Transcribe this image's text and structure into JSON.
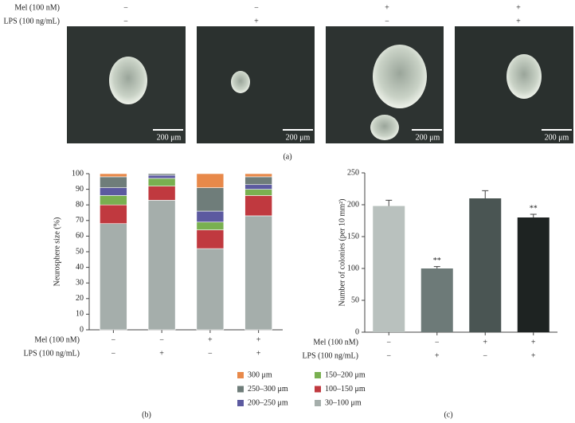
{
  "panel_a": {
    "rows": [
      {
        "label": "Mel (100 nM)",
        "values": [
          "−",
          "−",
          "+",
          "+"
        ]
      },
      {
        "label": "LPS (100 ng/mL)",
        "values": [
          "−",
          "+",
          "−",
          "+"
        ]
      }
    ],
    "scale_labels": [
      "200 μm",
      "200 μm",
      "200 μm",
      "200 μm"
    ],
    "caption": "(a)"
  },
  "chart_data": [
    {
      "type": "bar",
      "stacked": true,
      "caption": "(b)",
      "y_label": "Neurosphere size (%)",
      "categories": [
        null,
        null,
        null,
        null
      ],
      "x_rows": [
        {
          "label": "Mel (100 nM)",
          "values": [
            "−",
            "−",
            "+",
            "+"
          ]
        },
        {
          "label": "LPS (100 ng/mL)",
          "values": [
            "−",
            "+",
            "−",
            "+"
          ]
        }
      ],
      "series": [
        {
          "name": "30–100 μm",
          "color": "#a5aeab",
          "values": [
            68,
            83,
            52,
            73
          ]
        },
        {
          "name": "100–150 μm",
          "color": "#c0393f",
          "values": [
            12,
            9,
            12,
            13
          ]
        },
        {
          "name": "150–200 μm",
          "color": "#79b050",
          "values": [
            6,
            5,
            5,
            4
          ]
        },
        {
          "name": "200–250 μm",
          "color": "#5c5aa0",
          "values": [
            5,
            2,
            7,
            3
          ]
        },
        {
          "name": "250–300 μm",
          "color": "#6f7d7a",
          "values": [
            7,
            1,
            15,
            5
          ]
        },
        {
          "name": "300 μm",
          "color": "#e8894a",
          "values": [
            2,
            0,
            9,
            2
          ]
        }
      ],
      "ylim": [
        0,
        100
      ],
      "yticks": [
        0,
        10,
        20,
        30,
        40,
        50,
        60,
        70,
        80,
        90,
        100
      ]
    },
    {
      "type": "bar",
      "caption": "(c)",
      "y_label": "Number of colonies (per 10 mm²)",
      "categories": [
        null,
        null,
        null,
        null
      ],
      "x_rows": [
        {
          "label": "Mel (100 nM)",
          "values": [
            "−",
            "−",
            "+",
            "+"
          ]
        },
        {
          "label": "LPS (100 ng/mL)",
          "values": [
            "−",
            "+",
            "−",
            "+"
          ]
        }
      ],
      "values": [
        198,
        100,
        210,
        180
      ],
      "errors": [
        9,
        3,
        12,
        5
      ],
      "colors": [
        "#b9c1be",
        "#6d7a78",
        "#4a5553",
        "#1e2322"
      ],
      "annotations": [
        null,
        "**",
        null,
        "**"
      ],
      "ylim": [
        0,
        250
      ],
      "yticks": [
        0,
        50,
        100,
        150,
        200,
        250
      ]
    }
  ]
}
